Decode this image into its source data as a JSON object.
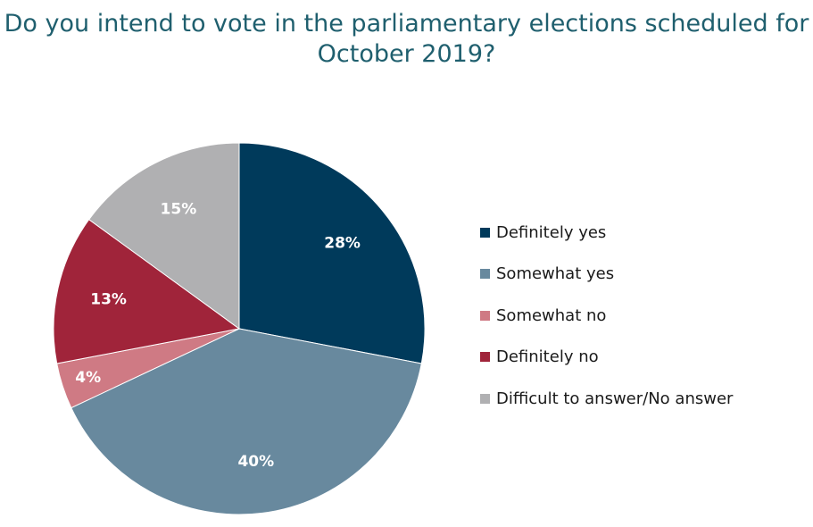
{
  "title": {
    "line1": "Do you intend to vote in the parliamentary elections scheduled for",
    "line2": "October 2019?"
  },
  "chart_data": {
    "type": "pie",
    "title": "Do you intend to vote in the parliamentary elections scheduled for October 2019?",
    "legend_position": "right",
    "slices": [
      {
        "name": "Definitely yes",
        "value": 28,
        "label": "28%",
        "color": "#003a5b"
      },
      {
        "name": "Somewhat yes",
        "value": 40,
        "label": "40%",
        "color": "#68899e"
      },
      {
        "name": "Somewhat no",
        "value": 4,
        "label": "4%",
        "color": "#cf7a84"
      },
      {
        "name": "Definitely no",
        "value": 13,
        "label": "13%",
        "color": "#a0243a"
      },
      {
        "name": "Difficult to answer/No answer",
        "value": 15,
        "label": "15%",
        "color": "#b0b0b2"
      }
    ]
  }
}
